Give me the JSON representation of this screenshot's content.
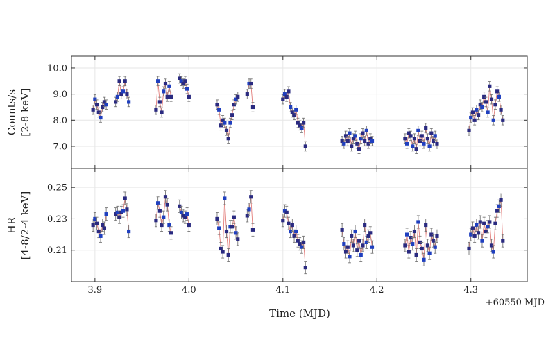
{
  "chart_data": {
    "type": "scatter",
    "colors": {
      "point": "#2a2a80",
      "point_alt": "#1f3fbf",
      "errorbar": "#777777",
      "fit_line": "#d9534f",
      "grid": "#e6e6e6",
      "frame": "#333333"
    },
    "x": {
      "label": "Time (MJD)",
      "offset_label": "+60550 MJD",
      "range": [
        3.875,
        4.36
      ],
      "ticks": [
        3.9,
        4.0,
        4.1,
        4.2,
        4.3
      ],
      "tick_labels": [
        "3.9",
        "4.0",
        "4.1",
        "4.2",
        "4.3"
      ]
    },
    "panels": [
      {
        "ylabel": [
          "Counts/s",
          "[2-8 keV]"
        ],
        "ylim": [
          6.15,
          10.45
        ],
        "ticks": [
          7.0,
          8.0,
          9.0,
          10.0
        ],
        "tick_labels": [
          "7.0",
          "8.0",
          "9.0",
          "10.0"
        ],
        "err": 0.18,
        "series": [
          {
            "x": [
              3.898,
              3.9,
              3.902,
              3.904,
              3.906,
              3.908,
              3.91,
              3.912
            ],
            "y": [
              8.4,
              8.8,
              8.6,
              8.3,
              8.1,
              8.5,
              8.7,
              8.6
            ]
          },
          {
            "x": [
              3.922,
              3.924,
              3.926,
              3.928,
              3.93,
              3.932,
              3.934,
              3.936
            ],
            "y": [
              8.7,
              8.9,
              9.5,
              9.0,
              9.1,
              9.5,
              9.0,
              8.7
            ]
          },
          {
            "x": [
              3.965,
              3.967,
              3.969,
              3.971,
              3.973,
              3.975,
              3.977,
              3.979,
              3.981
            ],
            "y": [
              8.4,
              9.5,
              8.7,
              8.3,
              9.1,
              9.4,
              8.9,
              9.3,
              8.9
            ]
          },
          {
            "x": [
              3.99,
              3.992,
              3.994,
              3.996,
              3.998,
              4.0
            ],
            "y": [
              9.6,
              9.5,
              9.4,
              9.5,
              9.2,
              8.9
            ]
          },
          {
            "x": [
              4.03,
              4.032,
              4.034,
              4.036,
              4.038,
              4.04,
              4.042,
              4.044,
              4.046,
              4.048,
              4.05,
              4.052
            ],
            "y": [
              8.6,
              8.4,
              7.8,
              8.0,
              7.9,
              7.6,
              7.3,
              7.9,
              8.2,
              8.6,
              8.8,
              8.9
            ]
          },
          {
            "x": [
              4.062,
              4.064,
              4.066,
              4.068
            ],
            "y": [
              9.0,
              9.4,
              9.4,
              8.5
            ]
          },
          {
            "x": [
              4.1,
              4.102,
              4.104,
              4.106,
              4.108,
              4.11,
              4.112,
              4.114,
              4.116,
              4.118,
              4.12,
              4.122,
              4.124
            ],
            "y": [
              8.8,
              9.0,
              8.9,
              9.1,
              8.5,
              8.3,
              8.2,
              8.4,
              7.9,
              7.8,
              7.7,
              7.9,
              7.0
            ]
          },
          {
            "x": [
              4.163,
              4.165,
              4.167,
              4.169,
              4.171,
              4.173,
              4.175,
              4.177,
              4.179,
              4.181,
              4.183,
              4.185,
              4.187,
              4.189,
              4.191,
              4.193,
              4.195
            ],
            "y": [
              7.2,
              7.1,
              7.4,
              7.2,
              7.5,
              7.0,
              7.3,
              7.4,
              7.1,
              6.9,
              7.3,
              7.5,
              7.2,
              7.6,
              7.1,
              7.3,
              7.2
            ]
          },
          {
            "x": [
              4.23,
              4.232,
              4.234,
              4.236,
              4.238,
              4.24,
              4.242,
              4.244,
              4.246,
              4.248,
              4.25,
              4.252,
              4.254,
              4.256,
              4.258,
              4.26,
              4.262,
              4.264
            ],
            "y": [
              7.3,
              7.1,
              7.5,
              7.4,
              7.0,
              7.3,
              6.9,
              7.6,
              7.2,
              7.4,
              7.1,
              7.7,
              7.3,
              7.0,
              7.5,
              7.2,
              7.4,
              7.1
            ]
          },
          {
            "x": [
              4.298,
              4.3,
              4.302,
              4.304,
              4.306,
              4.308,
              4.31,
              4.312,
              4.314,
              4.316,
              4.318,
              4.32,
              4.322,
              4.324,
              4.326,
              4.328,
              4.33,
              4.332,
              4.334
            ],
            "y": [
              7.6,
              8.1,
              8.3,
              8.0,
              8.4,
              8.2,
              8.6,
              8.5,
              8.9,
              8.7,
              8.3,
              9.3,
              8.8,
              8.0,
              8.6,
              9.1,
              8.9,
              8.4,
              8.0
            ]
          }
        ]
      },
      {
        "ylabel": [
          "HR",
          "[4-8/2-4 keV]"
        ],
        "ylim": [
          0.19,
          0.262
        ],
        "ticks": [
          0.21,
          0.23,
          0.25
        ],
        "tick_labels": [
          "0.21",
          "0.23",
          "0.25"
        ],
        "err": 0.004,
        "series": [
          {
            "x": [
              3.898,
              3.9,
              3.902,
              3.904,
              3.906,
              3.908,
              3.91,
              3.912
            ],
            "y": [
              0.226,
              0.23,
              0.227,
              0.222,
              0.219,
              0.226,
              0.224,
              0.233
            ]
          },
          {
            "x": [
              3.922,
              3.924,
              3.926,
              3.928,
              3.93,
              3.932,
              3.934,
              3.936
            ],
            "y": [
              0.233,
              0.234,
              0.231,
              0.234,
              0.235,
              0.243,
              0.236,
              0.222
            ]
          },
          {
            "x": [
              3.965,
              3.967,
              3.969,
              3.971,
              3.973,
              3.975,
              3.977,
              3.979,
              3.981
            ],
            "y": [
              0.229,
              0.24,
              0.235,
              0.226,
              0.231,
              0.244,
              0.239,
              0.226,
              0.221
            ]
          },
          {
            "x": [
              3.99,
              3.992,
              3.994,
              3.996,
              3.998,
              4.0
            ],
            "y": [
              0.238,
              0.234,
              0.232,
              0.231,
              0.233,
              0.226
            ]
          },
          {
            "x": [
              4.03,
              4.032,
              4.034,
              4.036,
              4.038,
              4.04,
              4.042,
              4.044,
              4.046,
              4.048,
              4.05,
              4.052
            ],
            "y": [
              0.23,
              0.224,
              0.211,
              0.209,
              0.243,
              0.222,
              0.207,
              0.225,
              0.225,
              0.231,
              0.221,
              0.217
            ]
          },
          {
            "x": [
              4.062,
              4.064,
              4.066,
              4.068
            ],
            "y": [
              0.232,
              0.236,
              0.244,
              0.223
            ]
          },
          {
            "x": [
              4.1,
              4.102,
              4.104,
              4.106,
              4.108,
              4.11,
              4.112,
              4.114,
              4.116,
              4.118,
              4.12,
              4.122,
              4.124
            ],
            "y": [
              0.229,
              0.235,
              0.234,
              0.227,
              0.222,
              0.226,
              0.219,
              0.222,
              0.216,
              0.214,
              0.212,
              0.215,
              0.199
            ]
          },
          {
            "x": [
              4.163,
              4.165,
              4.167,
              4.169,
              4.171,
              4.173,
              4.175,
              4.177,
              4.179,
              4.181,
              4.183,
              4.185,
              4.187,
              4.189,
              4.191,
              4.193,
              4.195
            ],
            "y": [
              0.223,
              0.214,
              0.209,
              0.212,
              0.206,
              0.219,
              0.213,
              0.222,
              0.21,
              0.216,
              0.207,
              0.213,
              0.226,
              0.215,
              0.219,
              0.221,
              0.212
            ]
          },
          {
            "x": [
              4.23,
              4.232,
              4.234,
              4.236,
              4.238,
              4.24,
              4.242,
              4.244,
              4.246,
              4.248,
              4.25,
              4.252,
              4.254,
              4.256,
              4.258,
              4.26,
              4.262,
              4.264
            ],
            "y": [
              0.213,
              0.22,
              0.209,
              0.218,
              0.214,
              0.222,
              0.207,
              0.228,
              0.215,
              0.211,
              0.204,
              0.226,
              0.213,
              0.208,
              0.22,
              0.216,
              0.212,
              0.219
            ]
          },
          {
            "x": [
              4.298,
              4.3,
              4.302,
              4.304,
              4.306,
              4.308,
              4.31,
              4.312,
              4.314,
              4.316,
              4.318,
              4.32,
              4.322,
              4.324,
              4.326,
              4.328,
              4.33,
              4.332,
              4.334
            ],
            "y": [
              0.211,
              0.22,
              0.224,
              0.219,
              0.226,
              0.221,
              0.228,
              0.216,
              0.227,
              0.222,
              0.225,
              0.228,
              0.213,
              0.209,
              0.227,
              0.235,
              0.238,
              0.242,
              0.216
            ]
          }
        ]
      }
    ]
  }
}
